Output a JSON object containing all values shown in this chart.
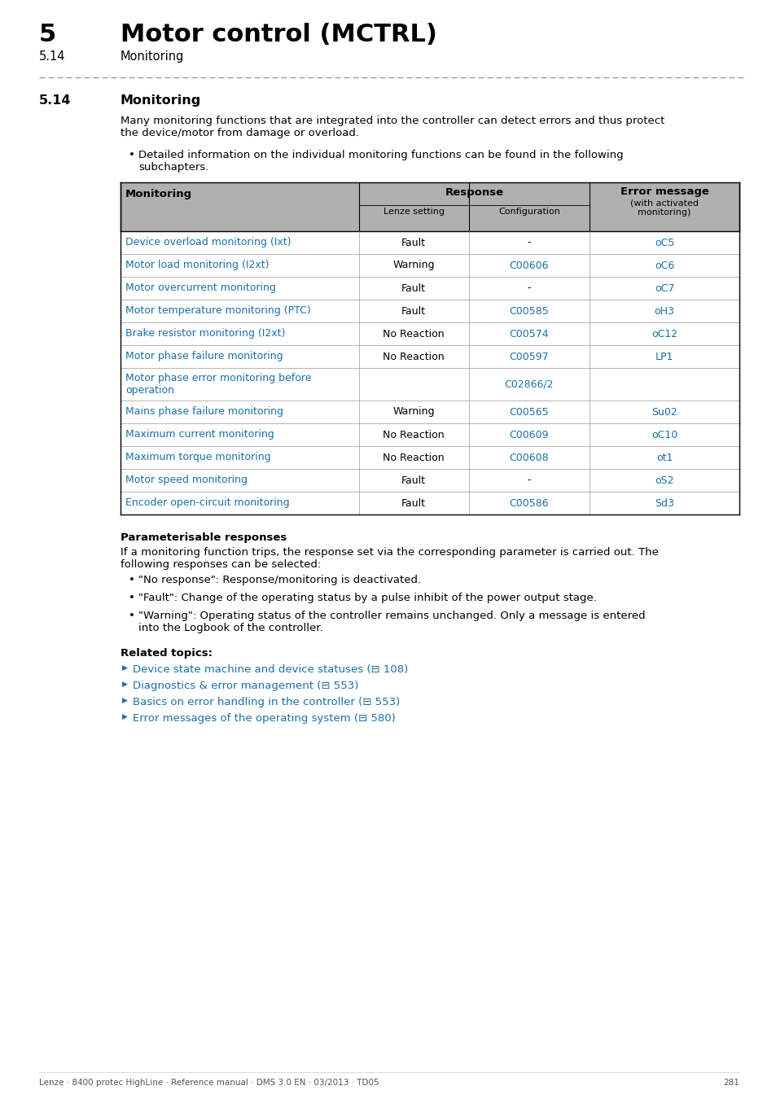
{
  "page_title_num": "5",
  "page_title_text": "Motor control (MCTRL)",
  "page_subtitle_num": "5.14",
  "page_subtitle_text": "Monitoring",
  "section_num": "5.14",
  "section_title": "Monitoring",
  "intro_text": "Many monitoring functions that are integrated into the controller can detect errors and thus protect\nthe device/motor from damage or overload.",
  "bullet_intro": "Detailed information on the individual monitoring functions can be found in the following\nsubchapters.",
  "table_rows": [
    [
      "Device overload monitoring (Ixt)",
      "Fault",
      "-",
      "oC5"
    ],
    [
      "Motor load monitoring (I2xt)",
      "Warning",
      "C00606",
      "oC6"
    ],
    [
      "Motor overcurrent monitoring",
      "Fault",
      "-",
      "oC7"
    ],
    [
      "Motor temperature monitoring (PTC)",
      "Fault",
      "C00585",
      "oH3"
    ],
    [
      "Brake resistor monitoring (I2xt)",
      "No Reaction",
      "C00574",
      "oC12"
    ],
    [
      "Motor phase failure monitoring",
      "No Reaction",
      "C00597",
      "LP1"
    ],
    [
      "Motor phase error monitoring before\noperation",
      "",
      "C02866/2",
      ""
    ],
    [
      "Mains phase failure monitoring",
      "Warning",
      "C00565",
      "Su02"
    ],
    [
      "Maximum current monitoring",
      "No Reaction",
      "C00609",
      "oC10"
    ],
    [
      "Maximum torque monitoring",
      "No Reaction",
      "C00608",
      "ot1"
    ],
    [
      "Motor speed monitoring",
      "Fault",
      "-",
      "oS2"
    ],
    [
      "Encoder open-circuit monitoring",
      "Fault",
      "C00586",
      "Sd3"
    ]
  ],
  "col3_links": [
    false,
    true,
    false,
    true,
    true,
    true,
    true,
    true,
    true,
    true,
    false,
    true
  ],
  "col4_links": [
    true,
    true,
    true,
    true,
    true,
    true,
    false,
    true,
    true,
    true,
    true,
    true
  ],
  "param_title": "Parameterisable responses",
  "param_intro": "If a monitoring function trips, the response set via the corresponding parameter is carried out. The\nfollowing responses can be selected:",
  "param_bullets": [
    "\"No response\": Response/monitoring is deactivated.",
    "\"Fault\": Change of the operating status by a pulse inhibit of the power output stage.",
    "\"Warning\": Operating status of the controller remains unchanged. Only a message is entered\ninto the Logbook of the controller."
  ],
  "related_title": "Related topics:",
  "related_links": [
    "Device state machine and device statuses (⊟ 108)",
    "Diagnostics & error management (⊟ 553)",
    "Basics on error handling in the controller (⊟ 553)",
    "Error messages of the operating system (⊟ 580)"
  ],
  "footer_text": "Lenze · 8400 protec HighLine · Reference manual · DMS 3.0 EN · 03/2013 · TD05",
  "footer_page": "281",
  "link_color": "#1a6fa8",
  "header_bg": "#AAAAAA",
  "text_color": "#000000"
}
